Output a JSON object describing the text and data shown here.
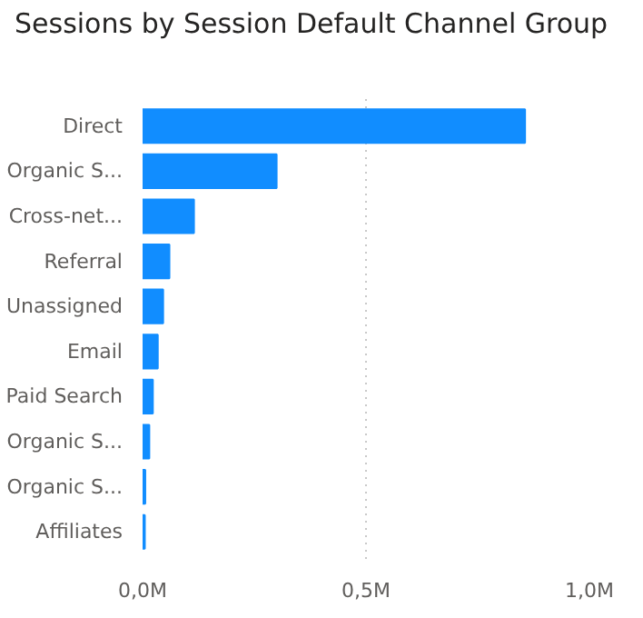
{
  "chart_data": {
    "type": "bar",
    "orientation": "horizontal",
    "title": "Sessions by Session Default Channel Group",
    "categories": [
      "Direct",
      "Organic S...",
      "Cross-net...",
      "Referral",
      "Unassigned",
      "Email",
      "Paid Search",
      "Organic S...",
      "Organic S...",
      "Affiliates"
    ],
    "values": [
      0.856,
      0.3,
      0.115,
      0.06,
      0.046,
      0.034,
      0.023,
      0.015,
      0.006,
      0.005
    ],
    "color": "#118dff",
    "xlim": [
      0,
      1
    ],
    "xticks": [
      {
        "value": 0,
        "label": "0,0M"
      },
      {
        "value": 0.5,
        "label": "0,5M"
      },
      {
        "value": 1,
        "label": "1,0M"
      }
    ],
    "grid": "x"
  }
}
